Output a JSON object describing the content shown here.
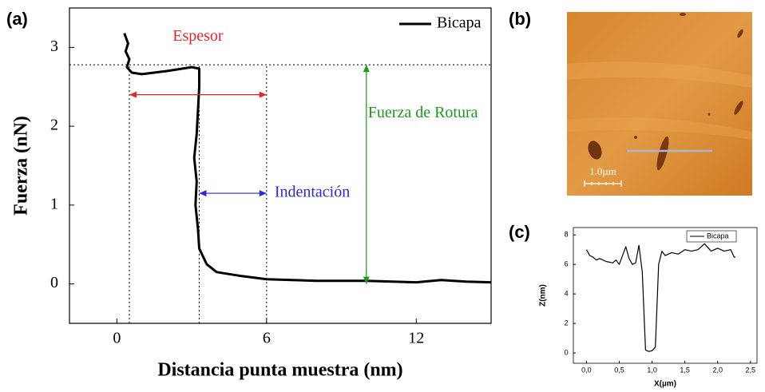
{
  "chart_data": [
    {
      "type": "line",
      "label": "(a)",
      "x_label": "Distancia punta muestra (nm)",
      "y_label": "Fuerza (nN)",
      "xlim": [
        -1.9,
        15
      ],
      "ylim": [
        -0.5,
        3.5
      ],
      "xticks": [
        0,
        6,
        12
      ],
      "yticks": [
        0,
        1,
        2,
        3
      ],
      "legend": "upper right",
      "x": [
        0.3,
        0.45,
        0.35,
        0.5,
        0.4,
        0.6,
        1.0,
        2.0,
        3.0,
        3.3,
        3.3,
        3.25,
        3.2,
        3.1,
        3.2,
        3.15,
        3.25,
        3.3,
        3.6,
        4.0,
        5.0,
        6.0,
        8.0,
        10.0,
        12.0,
        13.0,
        14.0,
        15.0
      ],
      "series": [
        {
          "name": "Bicapa",
          "color": "#000000",
          "values": [
            3.18,
            3.05,
            2.95,
            2.85,
            2.75,
            2.68,
            2.66,
            2.7,
            2.75,
            2.73,
            2.5,
            2.2,
            1.9,
            1.6,
            1.3,
            1.0,
            0.7,
            0.45,
            0.25,
            0.15,
            0.1,
            0.06,
            0.04,
            0.04,
            0.02,
            0.05,
            0.03,
            0.02
          ]
        }
      ],
      "ref_y": 2.78,
      "ref_x": [
        0.5,
        3.3,
        6
      ],
      "annotations": [
        {
          "text": "Espesor",
          "color": "#e8242a",
          "x": [
            0.5,
            6
          ],
          "y": [
            2.4,
            2.4
          ]
        },
        {
          "text": "Indentación",
          "color": "#2a2ae0",
          "x": [
            3.3,
            6
          ],
          "y": [
            1.15,
            1.15
          ]
        },
        {
          "text": "Fuerza de Rotura",
          "color": "#1a9a1a",
          "x": [
            10,
            10
          ],
          "y": [
            0,
            2.78
          ]
        }
      ]
    },
    {
      "type": "image",
      "label": "(b)",
      "scale_bar": "1.0µm"
    },
    {
      "type": "line",
      "label": "(c)",
      "x_label": "X(µm)",
      "y_label": "Z(nm)",
      "xlim": [
        -0.2,
        2.6
      ],
      "ylim": [
        -0.7,
        8.5
      ],
      "xticks": [
        {
          "value": 0,
          "label": "0,0"
        },
        {
          "value": 0.5,
          "label": "0,5"
        },
        {
          "value": 1,
          "label": "1,0"
        },
        {
          "value": 1.5,
          "label": "1,5"
        },
        {
          "value": 2,
          "label": "2,0"
        },
        {
          "value": 2.5,
          "label": "2,5"
        }
      ],
      "yticks": [
        0,
        2,
        4,
        6,
        8
      ],
      "legend": "upper right",
      "x": [
        0,
        0.05,
        0.1,
        0.15,
        0.2,
        0.3,
        0.4,
        0.45,
        0.5,
        0.55,
        0.6,
        0.65,
        0.7,
        0.75,
        0.8,
        0.85,
        0.9,
        0.95,
        1.0,
        1.05,
        1.1,
        1.15,
        1.2,
        1.3,
        1.4,
        1.5,
        1.6,
        1.7,
        1.8,
        1.9,
        2.0,
        2.1,
        2.2,
        2.25,
        2.27
      ],
      "series": [
        {
          "name": "Bicapa",
          "color": "#000000",
          "values": [
            7,
            6.6,
            6.5,
            6.3,
            6.4,
            6.2,
            6.1,
            6.3,
            6.0,
            6.6,
            7.2,
            6.4,
            6.0,
            6.1,
            7.3,
            5.5,
            0.2,
            0.1,
            0.15,
            0.4,
            6.0,
            6.9,
            6.6,
            6.8,
            6.7,
            7.0,
            6.9,
            7.0,
            7.4,
            6.9,
            7.1,
            6.9,
            7.0,
            6.5,
            6.5
          ]
        }
      ]
    }
  ]
}
